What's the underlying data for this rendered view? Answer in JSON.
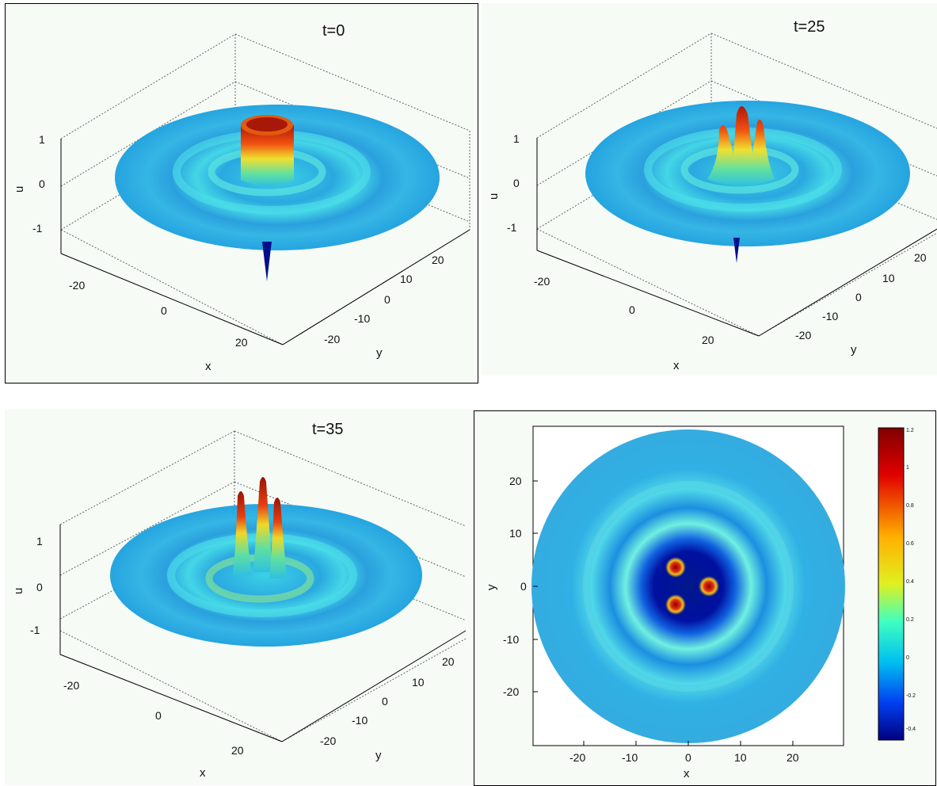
{
  "panels": [
    {
      "title": "t=0",
      "xlabel": "x",
      "ylabel": "y",
      "zlabel": "u",
      "zticks": [
        "1",
        "0",
        "-1"
      ],
      "xticks": [
        "-20",
        "0",
        "20"
      ],
      "yticks": [
        "20",
        "10",
        "0",
        "-10",
        "-20"
      ]
    },
    {
      "title": "t=25",
      "xlabel": "x",
      "ylabel": "y",
      "zlabel": "u",
      "zticks": [
        "1",
        "0",
        "-1"
      ],
      "xticks": [
        "-20",
        "0",
        "20"
      ],
      "yticks": [
        "20",
        "10",
        "0",
        "-10",
        "-20"
      ]
    },
    {
      "title": "t=35",
      "xlabel": "x",
      "ylabel": "y",
      "zlabel": "u",
      "zticks": [
        "1",
        "0",
        "-1"
      ],
      "xticks": [
        "-20",
        "0",
        "20"
      ],
      "yticks": [
        "20",
        "10",
        "0",
        "-10",
        "-20"
      ]
    }
  ],
  "contour": {
    "xlabel": "x",
    "ylabel": "y",
    "xticks": [
      "-20",
      "-10",
      "0",
      "10",
      "20"
    ],
    "yticks": [
      "20",
      "10",
      "0",
      "-10",
      "-20"
    ],
    "colorbar_ticks": [
      "1.2",
      "1",
      "0.8",
      "0.6",
      "0.4",
      "0.2",
      "0",
      "-0.2",
      "-0.4"
    ]
  },
  "chart_data": [
    {
      "type": "surface",
      "title": "t=0",
      "xlabel": "x",
      "ylabel": "y",
      "zlabel": "u",
      "xlim": [
        -30,
        30
      ],
      "ylim": [
        -30,
        30
      ],
      "zlim": [
        -1.5,
        1.5
      ],
      "description_values": {
        "central_peak_u": 1.0,
        "min_u": -1.3
      }
    },
    {
      "type": "surface",
      "title": "t=25",
      "xlabel": "x",
      "ylabel": "y",
      "zlabel": "u",
      "xlim": [
        -30,
        30
      ],
      "ylim": [
        -30,
        30
      ],
      "zlim": [
        -1.5,
        1.5
      ],
      "description_values": {
        "peak_count": 3,
        "peak_u": 1.1,
        "min_u": -1.2
      }
    },
    {
      "type": "surface",
      "title": "t=35",
      "xlabel": "x",
      "ylabel": "y",
      "zlabel": "u",
      "xlim": [
        -30,
        30
      ],
      "ylim": [
        -30,
        30
      ],
      "zlim": [
        -1.5,
        1.5
      ],
      "description_values": {
        "peak_count": 3,
        "peak_u": 1.3
      }
    },
    {
      "type": "heatmap",
      "xlabel": "x",
      "ylabel": "y",
      "xlim": [
        -30,
        30
      ],
      "ylim": [
        -30,
        30
      ],
      "colorbar": {
        "min": -0.45,
        "max": 1.2
      },
      "peaks": [
        {
          "x": -2,
          "y": 4
        },
        {
          "x": 4,
          "y": 0
        },
        {
          "x": -2,
          "y": -4
        }
      ]
    }
  ]
}
